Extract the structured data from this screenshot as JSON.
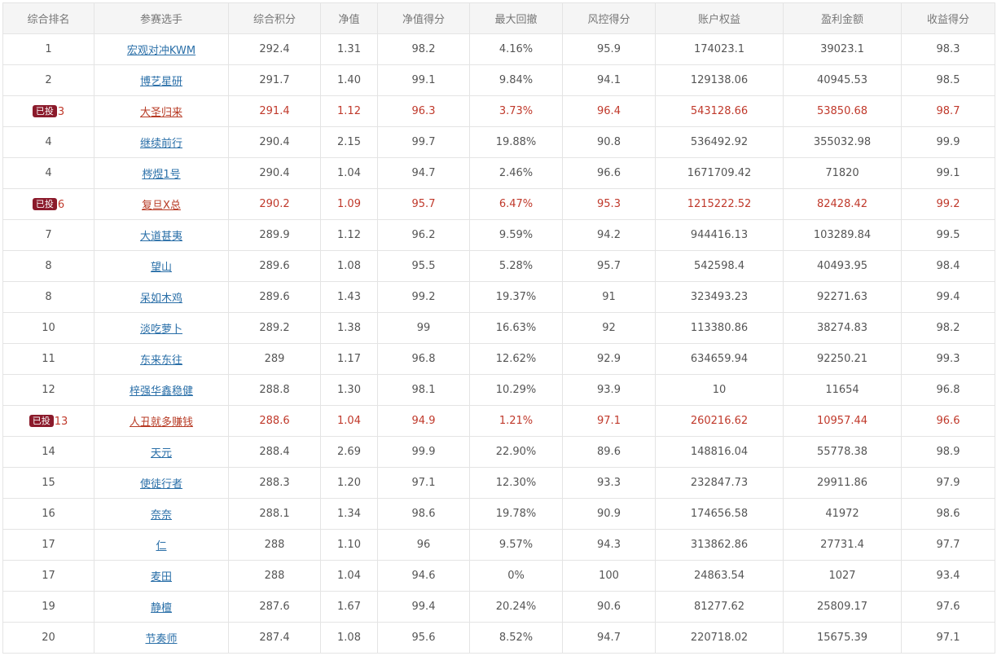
{
  "table": {
    "headers": [
      "综合排名",
      "参赛选手",
      "综合积分",
      "净值",
      "净值得分",
      "最大回撤",
      "风控得分",
      "账户权益",
      "盈利金额",
      "收益得分"
    ],
    "badge_text": "已投",
    "colors": {
      "highlight_text": "#c0392b",
      "badge_bg": "#8b1a2b",
      "link": "#2a6fa8"
    },
    "rows": [
      {
        "rank": "1",
        "player": "宏观对冲KWM",
        "score": "292.4",
        "nav": "1.31",
        "nav_score": "98.2",
        "max_dd": "4.16%",
        "risk_score": "95.9",
        "equity": "174023.1",
        "profit": "39023.1",
        "return_score": "98.3",
        "invested": false
      },
      {
        "rank": "2",
        "player": "博艺星研",
        "score": "291.7",
        "nav": "1.40",
        "nav_score": "99.1",
        "max_dd": "9.84%",
        "risk_score": "94.1",
        "equity": "129138.06",
        "profit": "40945.53",
        "return_score": "98.5",
        "invested": false
      },
      {
        "rank": "3",
        "player": "大圣归来",
        "score": "291.4",
        "nav": "1.12",
        "nav_score": "96.3",
        "max_dd": "3.73%",
        "risk_score": "96.4",
        "equity": "543128.66",
        "profit": "53850.68",
        "return_score": "98.7",
        "invested": true
      },
      {
        "rank": "4",
        "player": "继续前行",
        "score": "290.4",
        "nav": "2.15",
        "nav_score": "99.7",
        "max_dd": "19.88%",
        "risk_score": "90.8",
        "equity": "536492.92",
        "profit": "355032.98",
        "return_score": "99.9",
        "invested": false
      },
      {
        "rank": "4",
        "player": "梣煜1号",
        "score": "290.4",
        "nav": "1.04",
        "nav_score": "94.7",
        "max_dd": "2.46%",
        "risk_score": "96.6",
        "equity": "1671709.42",
        "profit": "71820",
        "return_score": "99.1",
        "invested": false
      },
      {
        "rank": "6",
        "player": "复旦X总",
        "score": "290.2",
        "nav": "1.09",
        "nav_score": "95.7",
        "max_dd": "6.47%",
        "risk_score": "95.3",
        "equity": "1215222.52",
        "profit": "82428.42",
        "return_score": "99.2",
        "invested": true
      },
      {
        "rank": "7",
        "player": "大道甚夷",
        "score": "289.9",
        "nav": "1.12",
        "nav_score": "96.2",
        "max_dd": "9.59%",
        "risk_score": "94.2",
        "equity": "944416.13",
        "profit": "103289.84",
        "return_score": "99.5",
        "invested": false
      },
      {
        "rank": "8",
        "player": "望山",
        "score": "289.6",
        "nav": "1.08",
        "nav_score": "95.5",
        "max_dd": "5.28%",
        "risk_score": "95.7",
        "equity": "542598.4",
        "profit": "40493.95",
        "return_score": "98.4",
        "invested": false
      },
      {
        "rank": "8",
        "player": "呆如木鸡",
        "score": "289.6",
        "nav": "1.43",
        "nav_score": "99.2",
        "max_dd": "19.37%",
        "risk_score": "91",
        "equity": "323493.23",
        "profit": "92271.63",
        "return_score": "99.4",
        "invested": false
      },
      {
        "rank": "10",
        "player": "淡吃萝卜",
        "score": "289.2",
        "nav": "1.38",
        "nav_score": "99",
        "max_dd": "16.63%",
        "risk_score": "92",
        "equity": "113380.86",
        "profit": "38274.83",
        "return_score": "98.2",
        "invested": false
      },
      {
        "rank": "11",
        "player": "东来东往",
        "score": "289",
        "nav": "1.17",
        "nav_score": "96.8",
        "max_dd": "12.62%",
        "risk_score": "92.9",
        "equity": "634659.94",
        "profit": "92250.21",
        "return_score": "99.3",
        "invested": false
      },
      {
        "rank": "12",
        "player": "梓强华鑫稳健",
        "score": "288.8",
        "nav": "1.30",
        "nav_score": "98.1",
        "max_dd": "10.29%",
        "risk_score": "93.9",
        "equity": "10",
        "profit": "11654",
        "return_score": "96.8",
        "invested": false
      },
      {
        "rank": "13",
        "player": "人丑就多赚钱",
        "score": "288.6",
        "nav": "1.04",
        "nav_score": "94.9",
        "max_dd": "1.21%",
        "risk_score": "97.1",
        "equity": "260216.62",
        "profit": "10957.44",
        "return_score": "96.6",
        "invested": true
      },
      {
        "rank": "14",
        "player": "天元",
        "score": "288.4",
        "nav": "2.69",
        "nav_score": "99.9",
        "max_dd": "22.90%",
        "risk_score": "89.6",
        "equity": "148816.04",
        "profit": "55778.38",
        "return_score": "98.9",
        "invested": false
      },
      {
        "rank": "15",
        "player": "使徒行者",
        "score": "288.3",
        "nav": "1.20",
        "nav_score": "97.1",
        "max_dd": "12.30%",
        "risk_score": "93.3",
        "equity": "232847.73",
        "profit": "29911.86",
        "return_score": "97.9",
        "invested": false
      },
      {
        "rank": "16",
        "player": "奈奈",
        "score": "288.1",
        "nav": "1.34",
        "nav_score": "98.6",
        "max_dd": "19.78%",
        "risk_score": "90.9",
        "equity": "174656.58",
        "profit": "41972",
        "return_score": "98.6",
        "invested": false
      },
      {
        "rank": "17",
        "player": "仁",
        "score": "288",
        "nav": "1.10",
        "nav_score": "96",
        "max_dd": "9.57%",
        "risk_score": "94.3",
        "equity": "313862.86",
        "profit": "27731.4",
        "return_score": "97.7",
        "invested": false
      },
      {
        "rank": "17",
        "player": "麦田",
        "score": "288",
        "nav": "1.04",
        "nav_score": "94.6",
        "max_dd": "0%",
        "risk_score": "100",
        "equity": "24863.54",
        "profit": "1027",
        "return_score": "93.4",
        "invested": false
      },
      {
        "rank": "19",
        "player": "静檀",
        "score": "287.6",
        "nav": "1.67",
        "nav_score": "99.4",
        "max_dd": "20.24%",
        "risk_score": "90.6",
        "equity": "81277.62",
        "profit": "25809.17",
        "return_score": "97.6",
        "invested": false
      },
      {
        "rank": "20",
        "player": "节奏师",
        "score": "287.4",
        "nav": "1.08",
        "nav_score": "95.6",
        "max_dd": "8.52%",
        "risk_score": "94.7",
        "equity": "220718.02",
        "profit": "15675.39",
        "return_score": "97.1",
        "invested": false
      }
    ]
  }
}
